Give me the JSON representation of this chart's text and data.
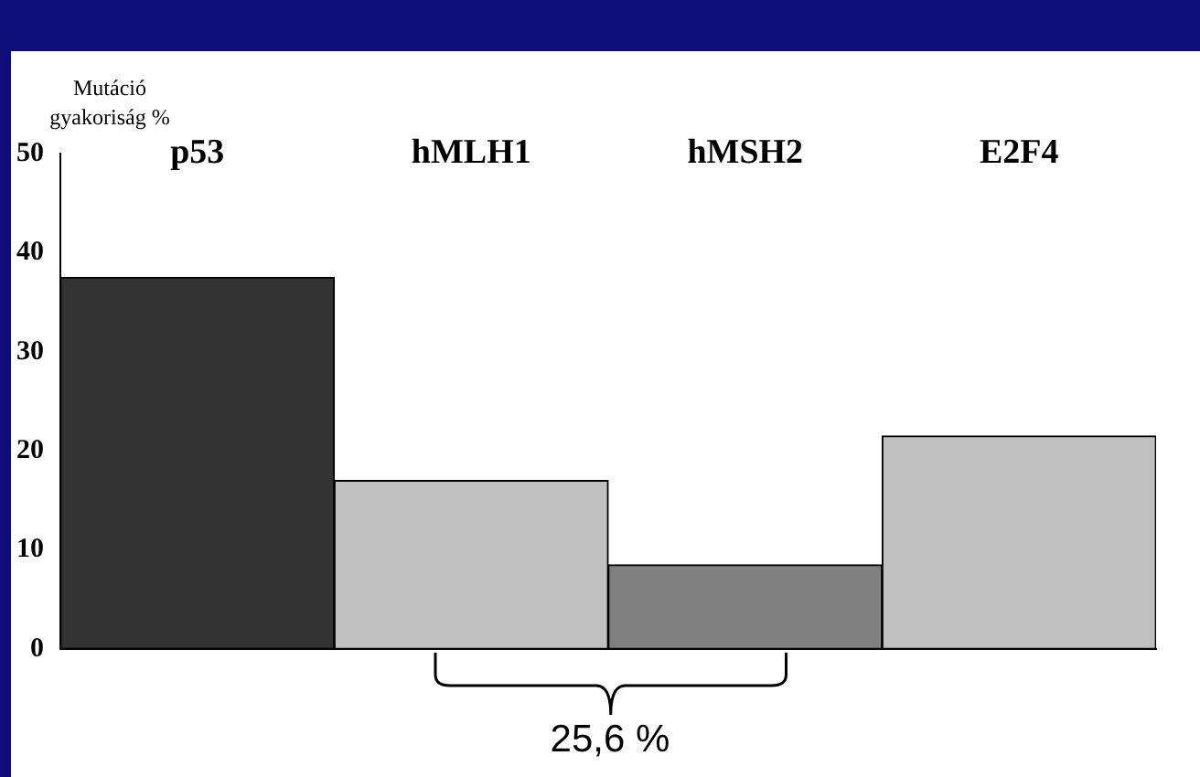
{
  "chart_data": {
    "type": "bar",
    "ylabel": "Mutáció\ngyakoriság %",
    "categories": [
      "p53",
      "hMLH1",
      "hMSH2",
      "E2F4"
    ],
    "values": [
      37.5,
      17,
      8.5,
      21.5
    ],
    "colors": [
      "#333333",
      "#c0c0c0",
      "#808080",
      "#c0c0c0"
    ],
    "ylim": [
      0,
      50
    ],
    "yticks": [
      0,
      10,
      20,
      30,
      40,
      50
    ],
    "grid": false,
    "legend": false,
    "annotations": [
      "25,6 %"
    ]
  }
}
